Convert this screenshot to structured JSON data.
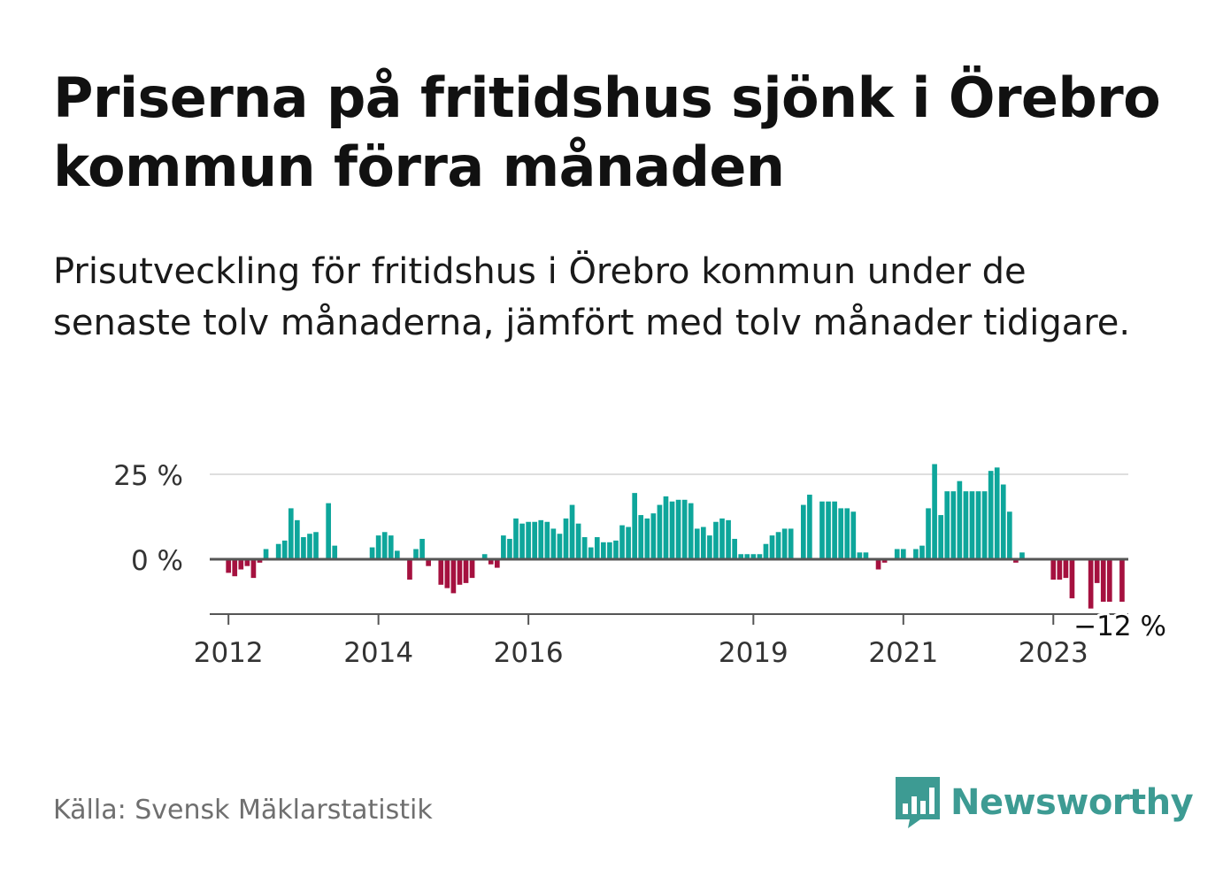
{
  "header": {
    "title": "Priserna på fritidshus sjönk i Örebro kommun förra månaden",
    "subtitle": "Prisutveckling för fritidshus i Örebro kommun under de senaste tolv månaderna, jämfört med tolv månader tidigare."
  },
  "footer": {
    "source": "Källa: Svensk Mäklarstatistik",
    "brand": "Newsworthy"
  },
  "colors": {
    "positive": "#0ea69b",
    "negative": "#a5113f",
    "brand": "#3d9b93"
  },
  "chart_data": {
    "type": "bar",
    "title": "",
    "xlabel": "",
    "ylabel": "",
    "x_unit": "month",
    "x_start": "2011-10",
    "x_end": "2024-01",
    "ylim": [
      -16,
      30
    ],
    "yticks": [
      {
        "value": 0,
        "label": "0 %"
      },
      {
        "value": 25,
        "label": "25 %"
      }
    ],
    "xticks": [
      {
        "month": "2012-01",
        "label": "2012"
      },
      {
        "month": "2014-01",
        "label": "2014"
      },
      {
        "month": "2016-01",
        "label": "2016"
      },
      {
        "month": "2019-01",
        "label": "2019"
      },
      {
        "month": "2021-01",
        "label": "2021"
      },
      {
        "month": "2023-01",
        "label": "2023"
      }
    ],
    "grid": true,
    "legend": "none",
    "annotation": {
      "month": "2023-12",
      "value": -12,
      "label": "−12 %"
    },
    "series": [
      {
        "values": [
          [
            "2012-01",
            -4
          ],
          [
            "2012-02",
            -5
          ],
          [
            "2012-03",
            -3
          ],
          [
            "2012-04",
            -2
          ],
          [
            "2012-05",
            -5.5
          ],
          [
            "2012-06",
            -1
          ],
          [
            "2012-07",
            3
          ],
          [
            "2012-09",
            4.5
          ],
          [
            "2012-10",
            5.5
          ],
          [
            "2012-11",
            15
          ],
          [
            "2012-12",
            11.5
          ],
          [
            "2013-01",
            6.5
          ],
          [
            "2013-02",
            7.5
          ],
          [
            "2013-03",
            8
          ],
          [
            "2013-05",
            16.5
          ],
          [
            "2013-06",
            4
          ],
          [
            "2013-12",
            3.5
          ],
          [
            "2014-01",
            7
          ],
          [
            "2014-02",
            8
          ],
          [
            "2014-03",
            7
          ],
          [
            "2014-04",
            2.5
          ],
          [
            "2014-06",
            -6
          ],
          [
            "2014-07",
            3
          ],
          [
            "2014-08",
            6
          ],
          [
            "2014-09",
            -2
          ],
          [
            "2014-11",
            -7.5
          ],
          [
            "2014-12",
            -8.5
          ],
          [
            "2015-01",
            -10
          ],
          [
            "2015-02",
            -7.5
          ],
          [
            "2015-03",
            -7
          ],
          [
            "2015-04",
            -5.5
          ],
          [
            "2015-06",
            1.5
          ],
          [
            "2015-07",
            -1.5
          ],
          [
            "2015-08",
            -2.5
          ],
          [
            "2015-09",
            7
          ],
          [
            "2015-10",
            6
          ],
          [
            "2015-11",
            12
          ],
          [
            "2015-12",
            10.5
          ],
          [
            "2016-01",
            11
          ],
          [
            "2016-02",
            11
          ],
          [
            "2016-03",
            11.5
          ],
          [
            "2016-04",
            11
          ],
          [
            "2016-05",
            9
          ],
          [
            "2016-06",
            7.5
          ],
          [
            "2016-07",
            12
          ],
          [
            "2016-08",
            16
          ],
          [
            "2016-09",
            10.5
          ],
          [
            "2016-10",
            6.5
          ],
          [
            "2016-11",
            3.5
          ],
          [
            "2016-12",
            6.5
          ],
          [
            "2017-01",
            5
          ],
          [
            "2017-02",
            5
          ],
          [
            "2017-03",
            5.5
          ],
          [
            "2017-04",
            10
          ],
          [
            "2017-05",
            9.5
          ],
          [
            "2017-06",
            19.5
          ],
          [
            "2017-07",
            13
          ],
          [
            "2017-08",
            12
          ],
          [
            "2017-09",
            13.5
          ],
          [
            "2017-10",
            16
          ],
          [
            "2017-11",
            18.5
          ],
          [
            "2017-12",
            17
          ],
          [
            "2018-01",
            17.5
          ],
          [
            "2018-02",
            17.5
          ],
          [
            "2018-03",
            16.5
          ],
          [
            "2018-04",
            9
          ],
          [
            "2018-05",
            9.5
          ],
          [
            "2018-06",
            7
          ],
          [
            "2018-07",
            11
          ],
          [
            "2018-08",
            12
          ],
          [
            "2018-09",
            11.5
          ],
          [
            "2018-10",
            6
          ],
          [
            "2018-11",
            1.5
          ],
          [
            "2018-12",
            1.5
          ],
          [
            "2019-01",
            1.5
          ],
          [
            "2019-02",
            1.5
          ],
          [
            "2019-03",
            4.5
          ],
          [
            "2019-04",
            7
          ],
          [
            "2019-05",
            8
          ],
          [
            "2019-06",
            9
          ],
          [
            "2019-07",
            9
          ],
          [
            "2019-09",
            16
          ],
          [
            "2019-10",
            19
          ],
          [
            "2019-12",
            17
          ],
          [
            "2020-01",
            17
          ],
          [
            "2020-02",
            17
          ],
          [
            "2020-03",
            15
          ],
          [
            "2020-04",
            15
          ],
          [
            "2020-05",
            14
          ],
          [
            "2020-06",
            2
          ],
          [
            "2020-07",
            2
          ],
          [
            "2020-09",
            -3
          ],
          [
            "2020-10",
            -1
          ],
          [
            "2020-12",
            3
          ],
          [
            "2021-01",
            3
          ],
          [
            "2021-03",
            3
          ],
          [
            "2021-04",
            4
          ],
          [
            "2021-05",
            15
          ],
          [
            "2021-06",
            28
          ],
          [
            "2021-07",
            13
          ],
          [
            "2021-08",
            20
          ],
          [
            "2021-09",
            20
          ],
          [
            "2021-10",
            23
          ],
          [
            "2021-11",
            20
          ],
          [
            "2021-12",
            20
          ],
          [
            "2022-01",
            20
          ],
          [
            "2022-02",
            20
          ],
          [
            "2022-03",
            26
          ],
          [
            "2022-04",
            27
          ],
          [
            "2022-05",
            22
          ],
          [
            "2022-06",
            14
          ],
          [
            "2022-07",
            -1
          ],
          [
            "2022-08",
            2
          ],
          [
            "2023-01",
            -6
          ],
          [
            "2023-02",
            -6
          ],
          [
            "2023-03",
            -5.5
          ],
          [
            "2023-04",
            -11.5
          ],
          [
            "2023-07",
            -14.5
          ],
          [
            "2023-08",
            -7
          ],
          [
            "2023-09",
            -12.5
          ],
          [
            "2023-10",
            -12.5
          ],
          [
            "2023-12",
            -12.5
          ]
        ]
      }
    ]
  }
}
